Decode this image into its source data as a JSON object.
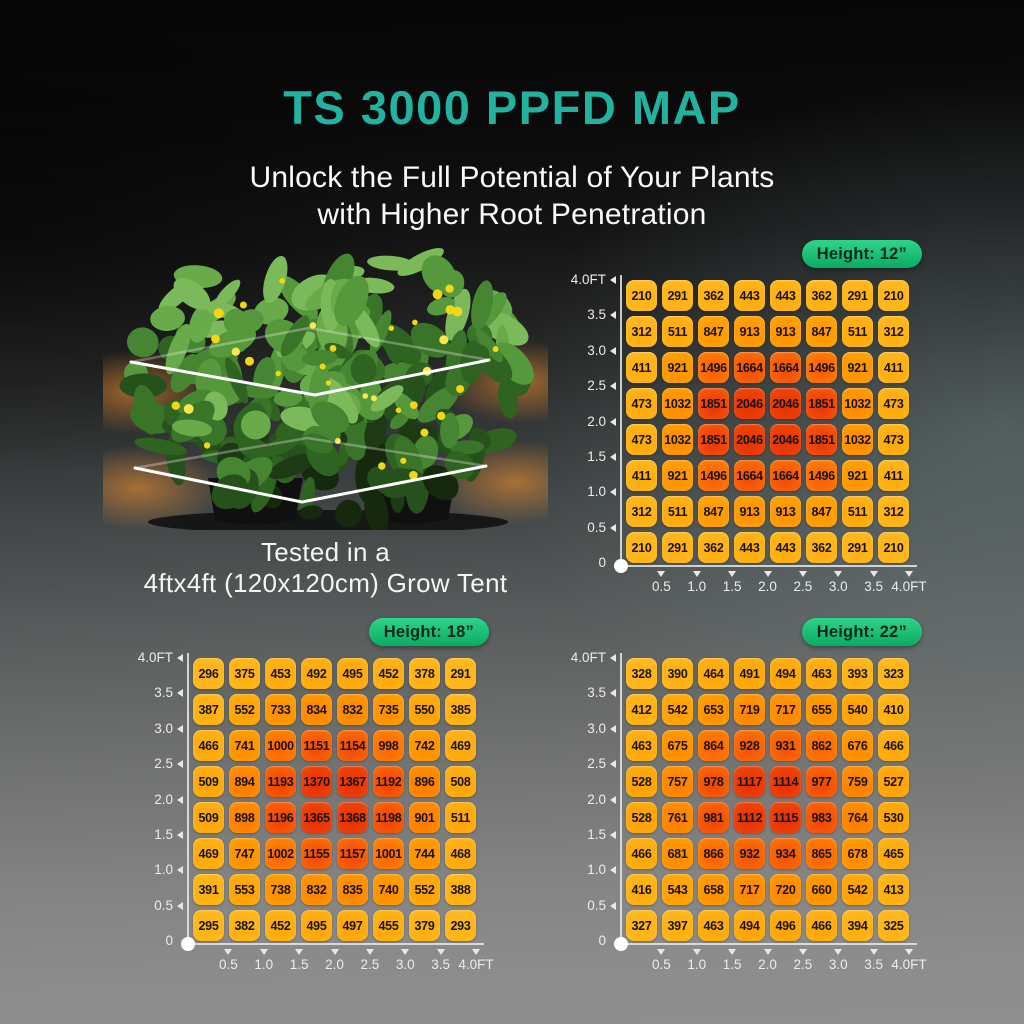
{
  "page": {
    "title": "TS 3000 PPFD MAP",
    "subtitle_line1": "Unlock the Full Potential of Your Plants",
    "subtitle_line2": "with Higher Root Penetration",
    "caption_line1": "Tested in a",
    "caption_line2": "4ftx4ft (120x120cm) Grow Tent"
  },
  "colors": {
    "title_teal": "#21B39F",
    "badge_green_top": "#2ED489",
    "badge_green_bottom": "#0BAB62",
    "badge_text": "#07291B",
    "cell_text": "#151515",
    "axis_gray": "#E8E8E8",
    "heat_stops": [
      [
        0.0,
        "#FFBA20"
      ],
      [
        0.18,
        "#FFAC0C"
      ],
      [
        0.42,
        "#FF9800"
      ],
      [
        0.62,
        "#FF7E00"
      ],
      [
        0.8,
        "#F85B08"
      ],
      [
        0.92,
        "#EF4407"
      ],
      [
        1.0,
        "#E63107"
      ]
    ]
  },
  "axes": {
    "y_labels": [
      "4.0FT",
      "3.5",
      "3.0",
      "2.5",
      "2.0",
      "1.5",
      "1.0",
      "0.5",
      "0"
    ],
    "x_labels": [
      "0.5",
      "1.0",
      "1.5",
      "2.0",
      "2.5",
      "3.0",
      "3.5",
      "4.0FT"
    ]
  },
  "chart_data": [
    {
      "type": "heatmap",
      "badge": "Height: 12”",
      "x_ft": [
        0.5,
        1.0,
        1.5,
        2.0,
        2.5,
        3.0,
        3.5,
        4.0
      ],
      "y_ft_top_to_bottom": [
        4.0,
        3.5,
        3.0,
        2.5,
        2.0,
        1.5,
        1.0,
        0.5
      ],
      "axis_unit": "FT",
      "values": [
        [
          210,
          291,
          362,
          443,
          443,
          362,
          291,
          210
        ],
        [
          312,
          511,
          847,
          913,
          913,
          847,
          511,
          312
        ],
        [
          411,
          921,
          1496,
          1664,
          1664,
          1496,
          921,
          411
        ],
        [
          473,
          1032,
          1851,
          2046,
          2046,
          1851,
          1032,
          473
        ],
        [
          473,
          1032,
          1851,
          2046,
          2046,
          1851,
          1032,
          473
        ],
        [
          411,
          921,
          1496,
          1664,
          1664,
          1496,
          921,
          411
        ],
        [
          312,
          511,
          847,
          913,
          913,
          847,
          511,
          312
        ],
        [
          210,
          291,
          362,
          443,
          443,
          362,
          291,
          210
        ]
      ]
    },
    {
      "type": "heatmap",
      "badge": "Height: 18”",
      "x_ft": [
        0.5,
        1.0,
        1.5,
        2.0,
        2.5,
        3.0,
        3.5,
        4.0
      ],
      "y_ft_top_to_bottom": [
        4.0,
        3.5,
        3.0,
        2.5,
        2.0,
        1.5,
        1.0,
        0.5
      ],
      "axis_unit": "FT",
      "values": [
        [
          296,
          375,
          453,
          492,
          495,
          452,
          378,
          291
        ],
        [
          387,
          552,
          733,
          834,
          832,
          735,
          550,
          385
        ],
        [
          466,
          741,
          1000,
          1151,
          1154,
          998,
          742,
          469
        ],
        [
          509,
          894,
          1193,
          1370,
          1367,
          1192,
          896,
          508
        ],
        [
          509,
          898,
          1196,
          1365,
          1368,
          1198,
          901,
          511
        ],
        [
          469,
          747,
          1002,
          1155,
          1157,
          1001,
          744,
          468
        ],
        [
          391,
          553,
          738,
          832,
          835,
          740,
          552,
          388
        ],
        [
          295,
          382,
          452,
          495,
          497,
          455,
          379,
          293
        ]
      ]
    },
    {
      "type": "heatmap",
      "badge": "Height: 22”",
      "x_ft": [
        0.5,
        1.0,
        1.5,
        2.0,
        2.5,
        3.0,
        3.5,
        4.0
      ],
      "y_ft_top_to_bottom": [
        4.0,
        3.5,
        3.0,
        2.5,
        2.0,
        1.5,
        1.0,
        0.5
      ],
      "axis_unit": "FT",
      "values": [
        [
          328,
          390,
          464,
          491,
          494,
          463,
          393,
          323
        ],
        [
          412,
          542,
          653,
          719,
          717,
          655,
          540,
          410
        ],
        [
          463,
          675,
          864,
          928,
          931,
          862,
          676,
          466
        ],
        [
          528,
          757,
          978,
          1117,
          1114,
          977,
          759,
          527
        ],
        [
          528,
          761,
          981,
          1112,
          1115,
          983,
          764,
          530
        ],
        [
          466,
          681,
          866,
          932,
          934,
          865,
          678,
          465
        ],
        [
          416,
          543,
          658,
          717,
          720,
          660,
          542,
          413
        ],
        [
          327,
          397,
          463,
          494,
          496,
          466,
          394,
          325
        ]
      ]
    }
  ]
}
